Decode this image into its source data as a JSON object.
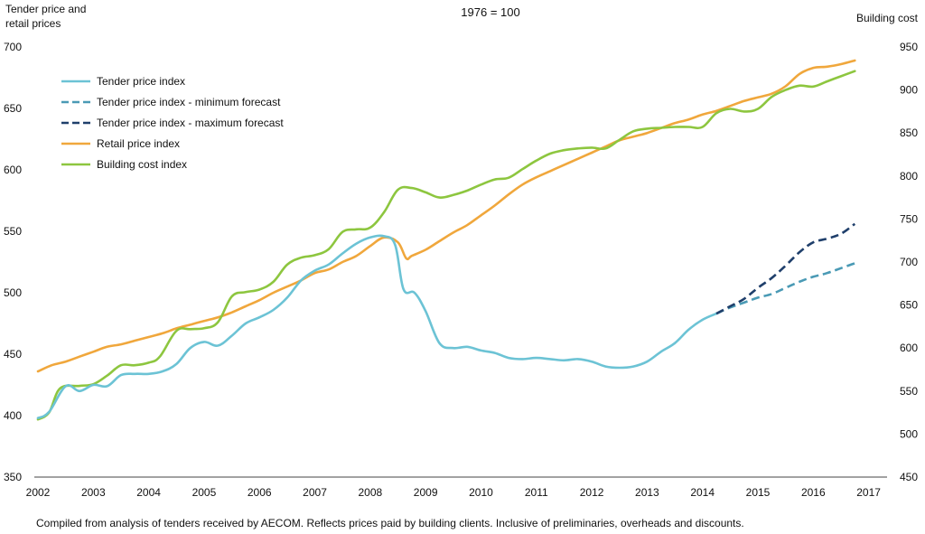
{
  "chart_data": {
    "type": "line",
    "title": "1976 = 100",
    "footnote": "Compiled from analysis of tenders received by AECOM. Reflects prices paid by building clients. Inclusive of preliminaries, overheads and discounts.",
    "ylabel_left_line1": "Tender price and",
    "ylabel_left_line2": "retail prices",
    "ylabel_right": "Building cost",
    "xlim": [
      2002,
      2017.3
    ],
    "ylim_left": [
      350,
      700
    ],
    "ylim_right": [
      450,
      950
    ],
    "x_ticks": [
      "2002",
      "2003",
      "2004",
      "2005",
      "2006",
      "2007",
      "2008",
      "2009",
      "2010",
      "2011",
      "2012",
      "2013",
      "2014",
      "2015",
      "2016",
      "2017"
    ],
    "y_ticks_left": [
      "350",
      "400",
      "450",
      "500",
      "550",
      "600",
      "650",
      "700"
    ],
    "y_ticks_right": [
      "450",
      "500",
      "550",
      "600",
      "650",
      "700",
      "750",
      "800",
      "850",
      "900",
      "950"
    ],
    "grid": false,
    "legend_position": "top-left",
    "series": [
      {
        "name": "Tender price index",
        "axis": "left",
        "color": "#6cc3d5",
        "dash": "solid",
        "points": [
          [
            2002.0,
            398
          ],
          [
            2002.2,
            403
          ],
          [
            2002.5,
            424
          ],
          [
            2002.75,
            420
          ],
          [
            2003.0,
            425
          ],
          [
            2003.25,
            424
          ],
          [
            2003.5,
            433
          ],
          [
            2003.75,
            434
          ],
          [
            2004.0,
            434
          ],
          [
            2004.25,
            436
          ],
          [
            2004.5,
            442
          ],
          [
            2004.75,
            455
          ],
          [
            2005.0,
            460
          ],
          [
            2005.25,
            457
          ],
          [
            2005.5,
            465
          ],
          [
            2005.75,
            475
          ],
          [
            2006.0,
            480
          ],
          [
            2006.25,
            486
          ],
          [
            2006.5,
            496
          ],
          [
            2006.75,
            510
          ],
          [
            2007.0,
            518
          ],
          [
            2007.25,
            523
          ],
          [
            2007.5,
            532
          ],
          [
            2007.75,
            540
          ],
          [
            2008.0,
            545
          ],
          [
            2008.25,
            546
          ],
          [
            2008.45,
            539
          ],
          [
            2008.6,
            503
          ],
          [
            2008.8,
            500
          ],
          [
            2009.0,
            485
          ],
          [
            2009.25,
            459
          ],
          [
            2009.5,
            455
          ],
          [
            2009.75,
            456
          ],
          [
            2010.0,
            453
          ],
          [
            2010.25,
            451
          ],
          [
            2010.5,
            447
          ],
          [
            2010.75,
            446
          ],
          [
            2011.0,
            447
          ],
          [
            2011.25,
            446
          ],
          [
            2011.5,
            445
          ],
          [
            2011.75,
            446
          ],
          [
            2012.0,
            444
          ],
          [
            2012.25,
            440
          ],
          [
            2012.5,
            439
          ],
          [
            2012.75,
            440
          ],
          [
            2013.0,
            444
          ],
          [
            2013.25,
            452
          ],
          [
            2013.5,
            459
          ],
          [
            2013.75,
            470
          ],
          [
            2014.0,
            478
          ],
          [
            2014.25,
            483
          ]
        ]
      },
      {
        "name": "Tender price index - minimum forecast",
        "axis": "left",
        "color": "#4a9ab5",
        "dash": "dashed",
        "points": [
          [
            2014.25,
            483
          ],
          [
            2014.5,
            488
          ],
          [
            2014.75,
            492
          ],
          [
            2015.0,
            496
          ],
          [
            2015.25,
            499
          ],
          [
            2015.5,
            504
          ],
          [
            2015.75,
            509
          ],
          [
            2016.0,
            513
          ],
          [
            2016.25,
            516
          ],
          [
            2016.5,
            520
          ],
          [
            2016.75,
            524
          ]
        ]
      },
      {
        "name": "Tender price index - maximum forecast",
        "axis": "left",
        "color": "#1f3f6b",
        "dash": "dashed",
        "points": [
          [
            2014.25,
            483
          ],
          [
            2014.5,
            489
          ],
          [
            2014.75,
            495
          ],
          [
            2015.0,
            504
          ],
          [
            2015.25,
            512
          ],
          [
            2015.5,
            522
          ],
          [
            2015.75,
            533
          ],
          [
            2016.0,
            541
          ],
          [
            2016.25,
            544
          ],
          [
            2016.5,
            548
          ],
          [
            2016.75,
            556
          ]
        ]
      },
      {
        "name": "Retail price index",
        "axis": "left",
        "color": "#f0a73c",
        "dash": "solid",
        "points": [
          [
            2002.0,
            436
          ],
          [
            2002.25,
            441
          ],
          [
            2002.5,
            444
          ],
          [
            2002.75,
            448
          ],
          [
            2003.0,
            452
          ],
          [
            2003.25,
            456
          ],
          [
            2003.5,
            458
          ],
          [
            2003.75,
            461
          ],
          [
            2004.0,
            464
          ],
          [
            2004.25,
            467
          ],
          [
            2004.5,
            471
          ],
          [
            2004.75,
            474
          ],
          [
            2005.0,
            477
          ],
          [
            2005.25,
            480
          ],
          [
            2005.5,
            484
          ],
          [
            2005.75,
            489
          ],
          [
            2006.0,
            494
          ],
          [
            2006.25,
            500
          ],
          [
            2006.5,
            505
          ],
          [
            2006.75,
            510
          ],
          [
            2007.0,
            516
          ],
          [
            2007.25,
            519
          ],
          [
            2007.5,
            525
          ],
          [
            2007.75,
            530
          ],
          [
            2008.0,
            538
          ],
          [
            2008.25,
            545
          ],
          [
            2008.5,
            541
          ],
          [
            2008.65,
            528
          ],
          [
            2008.75,
            530
          ],
          [
            2009.0,
            535
          ],
          [
            2009.25,
            542
          ],
          [
            2009.5,
            549
          ],
          [
            2009.75,
            555
          ],
          [
            2010.0,
            563
          ],
          [
            2010.25,
            571
          ],
          [
            2010.5,
            580
          ],
          [
            2010.75,
            588
          ],
          [
            2011.0,
            594
          ],
          [
            2011.25,
            599
          ],
          [
            2011.5,
            604
          ],
          [
            2011.75,
            609
          ],
          [
            2012.0,
            614
          ],
          [
            2012.25,
            619
          ],
          [
            2012.5,
            624
          ],
          [
            2012.75,
            627
          ],
          [
            2013.0,
            630
          ],
          [
            2013.25,
            634
          ],
          [
            2013.5,
            638
          ],
          [
            2013.75,
            641
          ],
          [
            2014.0,
            645
          ],
          [
            2014.25,
            648
          ],
          [
            2014.5,
            652
          ],
          [
            2014.75,
            656
          ],
          [
            2015.0,
            659
          ],
          [
            2015.25,
            662
          ],
          [
            2015.5,
            668
          ],
          [
            2015.75,
            678
          ],
          [
            2016.0,
            683
          ],
          [
            2016.25,
            684
          ],
          [
            2016.5,
            686
          ],
          [
            2016.75,
            689
          ]
        ]
      },
      {
        "name": "Building cost index",
        "axis": "right",
        "color": "#8dc63f",
        "dash": "solid",
        "points": [
          [
            2002.0,
            517
          ],
          [
            2002.2,
            525
          ],
          [
            2002.4,
            553
          ],
          [
            2002.75,
            556
          ],
          [
            2003.0,
            558
          ],
          [
            2003.25,
            568
          ],
          [
            2003.5,
            580
          ],
          [
            2003.75,
            580
          ],
          [
            2004.0,
            583
          ],
          [
            2004.2,
            590
          ],
          [
            2004.5,
            620
          ],
          [
            2004.75,
            622
          ],
          [
            2005.0,
            623
          ],
          [
            2005.25,
            630
          ],
          [
            2005.5,
            660
          ],
          [
            2005.75,
            665
          ],
          [
            2006.0,
            668
          ],
          [
            2006.25,
            677
          ],
          [
            2006.5,
            697
          ],
          [
            2006.75,
            705
          ],
          [
            2007.0,
            708
          ],
          [
            2007.25,
            715
          ],
          [
            2007.5,
            735
          ],
          [
            2007.75,
            738
          ],
          [
            2008.0,
            740
          ],
          [
            2008.25,
            758
          ],
          [
            2008.5,
            784
          ],
          [
            2008.75,
            786
          ],
          [
            2009.0,
            781
          ],
          [
            2009.25,
            775
          ],
          [
            2009.5,
            778
          ],
          [
            2009.75,
            783
          ],
          [
            2010.0,
            790
          ],
          [
            2010.25,
            796
          ],
          [
            2010.5,
            798
          ],
          [
            2010.75,
            808
          ],
          [
            2011.0,
            818
          ],
          [
            2011.25,
            826
          ],
          [
            2011.5,
            830
          ],
          [
            2011.75,
            832
          ],
          [
            2012.0,
            833
          ],
          [
            2012.25,
            832
          ],
          [
            2012.5,
            842
          ],
          [
            2012.75,
            852
          ],
          [
            2013.0,
            855
          ],
          [
            2013.25,
            856
          ],
          [
            2013.5,
            857
          ],
          [
            2013.75,
            857
          ],
          [
            2014.0,
            857
          ],
          [
            2014.25,
            873
          ],
          [
            2014.5,
            878
          ],
          [
            2014.75,
            875
          ],
          [
            2015.0,
            878
          ],
          [
            2015.25,
            892
          ],
          [
            2015.5,
            900
          ],
          [
            2015.75,
            905
          ],
          [
            2016.0,
            904
          ],
          [
            2016.25,
            910
          ],
          [
            2016.5,
            916
          ],
          [
            2016.75,
            922
          ]
        ]
      }
    ]
  }
}
